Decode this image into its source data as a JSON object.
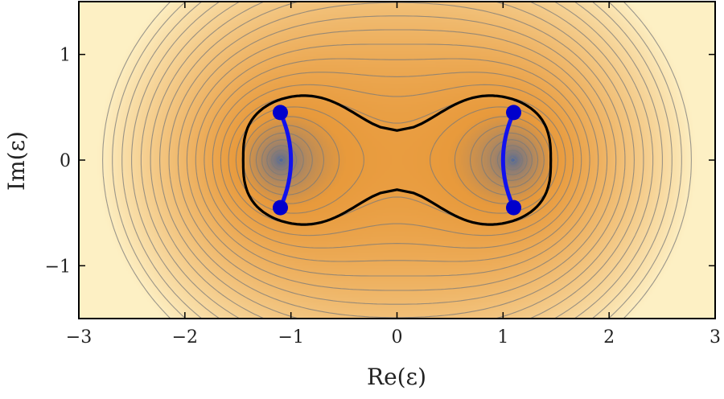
{
  "chart_data": {
    "type": "contour",
    "title": "",
    "xlabel": "Re(ε)",
    "ylabel": "Im(ε)",
    "xlim": [
      -3,
      3
    ],
    "ylim": [
      -1.5,
      1.5
    ],
    "xticks": [
      -3,
      -2,
      -1,
      0,
      1,
      2,
      3
    ],
    "yticks": [
      -1,
      0,
      1
    ],
    "xtick_labels": [
      "−3",
      "−2",
      "−1",
      "0",
      "1",
      "2",
      "3"
    ],
    "ytick_labels": [
      "−1",
      "0",
      "1"
    ],
    "grid": false,
    "colors": {
      "low": "#3b62a8",
      "mid": "#e89a3c",
      "high": "#fdf0c4",
      "contour": "#7a7a7a",
      "boundary": "#000000",
      "branch": "#1111ee",
      "point": "#0000cc"
    },
    "branch_points": [
      {
        "x": -1.1,
        "y": 0.45
      },
      {
        "x": -1.1,
        "y": -0.45
      },
      {
        "x": 1.1,
        "y": 0.45
      },
      {
        "x": 1.1,
        "y": -0.45
      }
    ],
    "branch_cuts": [
      {
        "from": [
          -1.1,
          0.45
        ],
        "to": [
          -1.1,
          -0.45
        ],
        "bulge_x": -1.0
      },
      {
        "from": [
          1.1,
          0.45
        ],
        "to": [
          1.1,
          -0.45
        ],
        "bulge_x": 1.0
      }
    ],
    "boundary_curve": {
      "right_extent": 1.45,
      "top_extent": 0.68,
      "neck_height": 0.28
    }
  }
}
